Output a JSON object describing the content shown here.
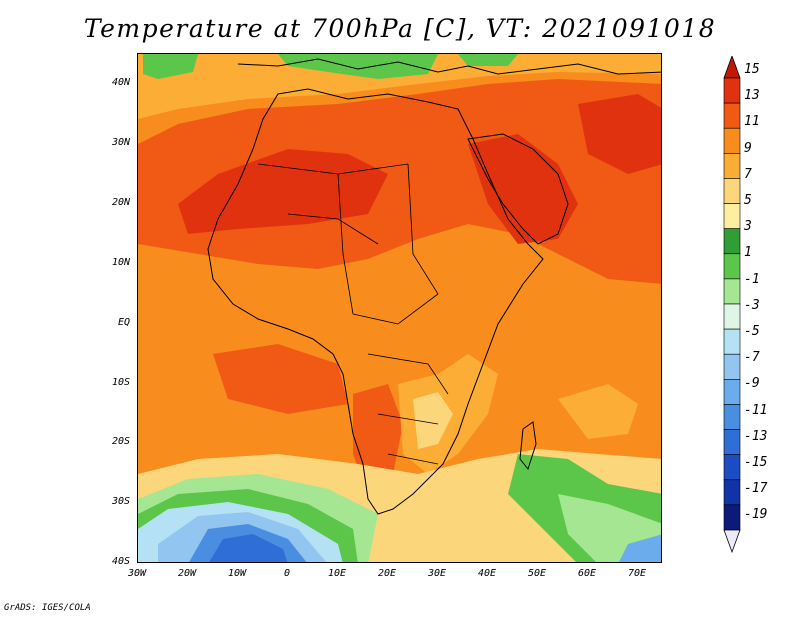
{
  "title": "Temperature at 700hPa [C], VT: 2021091018",
  "credit": "GrADS: IGES/COLA",
  "lat_labels": [
    "40N",
    "30N",
    "20N",
    "10N",
    "EQ",
    "10S",
    "20S",
    "30S",
    "40S"
  ],
  "lon_labels": [
    "30W",
    "20W",
    "10W",
    "0",
    "10E",
    "20E",
    "30E",
    "40E",
    "50E",
    "60E",
    "70E"
  ],
  "colorbar": {
    "labels": [
      "15",
      "13",
      "11",
      "9",
      "7",
      "5",
      "3",
      "1",
      "-1",
      "-3",
      "-5",
      "-7",
      "-9",
      "-11",
      "-13",
      "-15",
      "-17",
      "-19"
    ],
    "colors": [
      "#bf1a06",
      "#e0320e",
      "#f05a14",
      "#f88c1c",
      "#fbad36",
      "#fcd67a",
      "#fcf0a0",
      "#2f9e37",
      "#5cc64a",
      "#a4e692",
      "#def6e6",
      "#b4e2f4",
      "#92c6f0",
      "#6aacec",
      "#4a8ee2",
      "#2e6ed6",
      "#1c4cc4",
      "#1232a8",
      "#0c1a7a",
      "#eceafa"
    ]
  }
}
